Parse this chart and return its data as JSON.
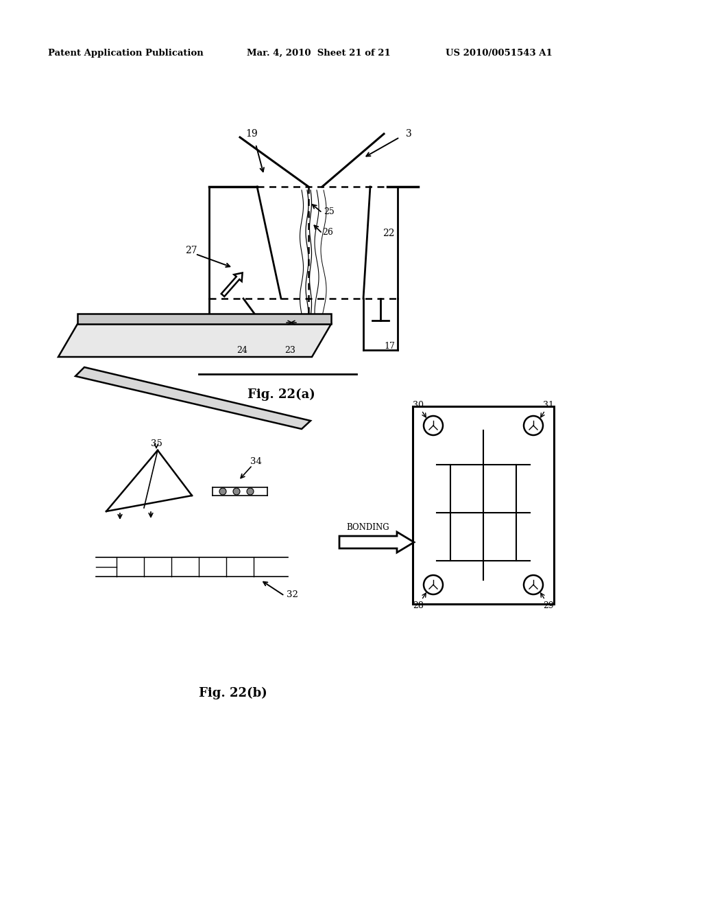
{
  "bg_color": "#ffffff",
  "header_left": "Patent Application Publication",
  "header_mid": "Mar. 4, 2010  Sheet 21 of 21",
  "header_right": "US 2010/0051543 A1",
  "fig_label_a": "Fig. 22(a)",
  "fig_label_b": "Fig. 22(b)",
  "bonding_label": "BONDING"
}
